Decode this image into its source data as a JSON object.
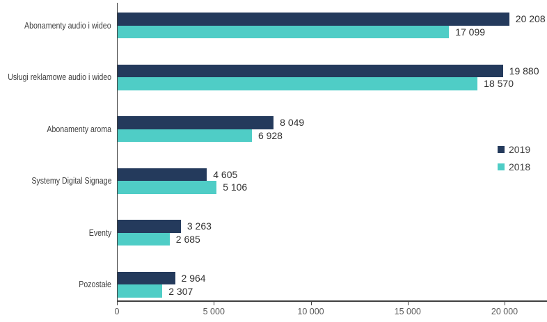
{
  "chart_data": {
    "type": "bar",
    "orientation": "horizontal",
    "title": "",
    "categories": [
      "Abonamenty audio i wideo",
      "Usługi reklamowe audio i wideo",
      "Abonamenty aroma",
      "Systemy Digital Signage",
      "Eventy",
      "Pozostałe"
    ],
    "series": [
      {
        "name": "2019",
        "color": "#243A5C",
        "values": [
          20208,
          19880,
          8049,
          4605,
          3263,
          2964
        ],
        "labels": [
          "20 208",
          "19 880",
          "8 049",
          "4 605",
          "3 263",
          "2 964"
        ]
      },
      {
        "name": "2018",
        "color": "#4FCDC6",
        "values": [
          17099,
          18570,
          6928,
          5106,
          2685,
          2307
        ],
        "labels": [
          "17 099",
          "18 570",
          "6 928",
          "5 106",
          "2 685",
          "2 307"
        ]
      }
    ],
    "x_axis": {
      "ticks": [
        0,
        5000,
        10000,
        15000,
        20000
      ],
      "tick_labels": [
        "0",
        "5 000",
        "10 000",
        "15 000",
        "20 000"
      ],
      "max": 22200
    },
    "legend": {
      "position": "right",
      "entries": [
        "2019",
        "2018"
      ]
    },
    "grid": false,
    "value_label_color": "#303030",
    "axis_color": "#404040"
  }
}
